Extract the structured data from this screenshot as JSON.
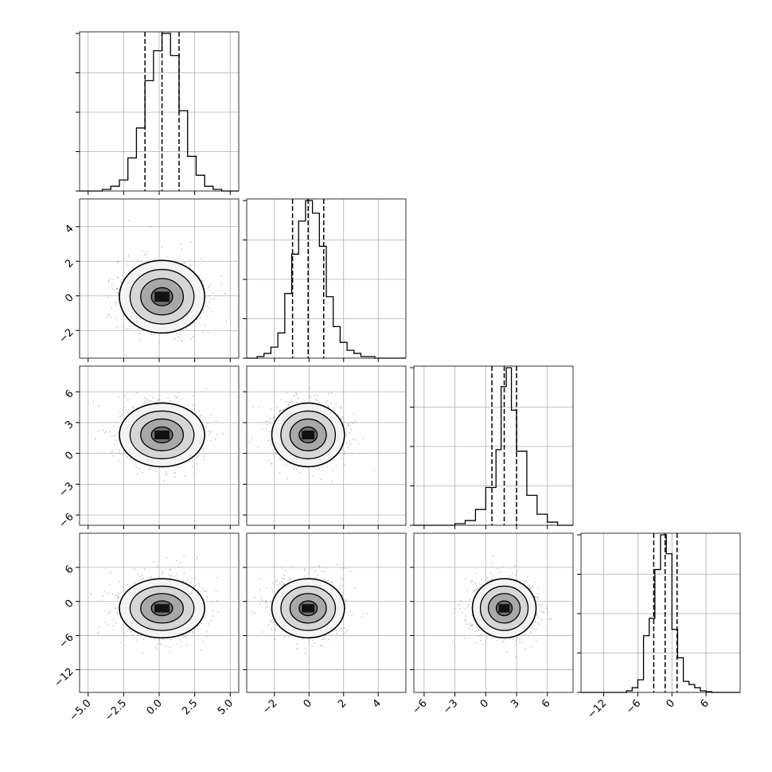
{
  "chart_data": {
    "type": "corner",
    "title": "",
    "grid": true,
    "variables": [
      {
        "median": 0.2,
        "q16": -1.0,
        "q84": 1.4,
        "range": [
          -5.6,
          5.6
        ],
        "ticks": [
          -5.0,
          -2.5,
          0.0,
          2.5,
          5.0
        ],
        "tick_labels": [
          "−5.0",
          "−2.5",
          "0.0",
          "2.5",
          "5.0"
        ],
        "bin_edges": [
          -4.0,
          -3.4,
          -2.8,
          -2.2,
          -1.6,
          -1.0,
          -0.4,
          0.2,
          0.8,
          1.4,
          2.0,
          2.6,
          3.2,
          3.8,
          4.4
        ],
        "counts": [
          0.01,
          0.03,
          0.07,
          0.21,
          0.4,
          0.7,
          0.89,
          1.0,
          0.86,
          0.51,
          0.22,
          0.1,
          0.03,
          0.01
        ]
      },
      {
        "median": -0.05,
        "q16": -0.95,
        "q84": 0.85,
        "range": [
          -3.6,
          5.6
        ],
        "ticks": [
          -2,
          0,
          2,
          4
        ],
        "tick_labels": [
          "−2",
          "0",
          "2",
          "4"
        ],
        "bin_edges": [
          -3.0,
          -2.6,
          -2.2,
          -1.8,
          -1.4,
          -1.0,
          -0.6,
          -0.2,
          0.2,
          0.6,
          1.0,
          1.4,
          1.8,
          2.2,
          2.6,
          3.0,
          3.4,
          3.8
        ],
        "counts": [
          0.01,
          0.03,
          0.07,
          0.16,
          0.41,
          0.66,
          0.87,
          1.0,
          0.92,
          0.71,
          0.39,
          0.2,
          0.1,
          0.05,
          0.03,
          0.01,
          0.01
        ]
      },
      {
        "median": 1.8,
        "q16": 0.6,
        "q84": 3.0,
        "range": [
          -7.0,
          8.5
        ],
        "ticks": [
          -6,
          -3,
          0,
          3,
          6
        ],
        "tick_labels": [
          "−6",
          "−3",
          "0",
          "3",
          "6"
        ],
        "bin_edges": [
          -3.0,
          -2.0,
          -1.0,
          0.0,
          1.0,
          1.5,
          2.0,
          2.5,
          3.0,
          4.0,
          5.0,
          6.0,
          7.0
        ],
        "counts": [
          0.01,
          0.03,
          0.1,
          0.24,
          0.48,
          0.88,
          1.0,
          0.73,
          0.47,
          0.19,
          0.07,
          0.02
        ]
      },
      {
        "median": -1.2,
        "q16": -3.2,
        "q84": 0.9,
        "range": [
          -16.0,
          12.0
        ],
        "ticks": [
          -12,
          -6,
          0,
          6
        ],
        "tick_labels": [
          "−12",
          "−6",
          "0",
          "6"
        ],
        "bin_edges": [
          -8.0,
          -7.0,
          -6.0,
          -5.0,
          -4.0,
          -3.0,
          -2.0,
          -1.0,
          0.0,
          1.0,
          2.0,
          3.0,
          4.0,
          5.0,
          6.0,
          7.0
        ],
        "counts": [
          0.01,
          0.03,
          0.08,
          0.36,
          0.47,
          0.78,
          1.0,
          0.88,
          0.4,
          0.22,
          0.07,
          0.05,
          0.03,
          0.01,
          0.005
        ]
      }
    ],
    "pairs": [
      {
        "x": 0,
        "y": 1,
        "center": [
          0.2,
          -0.05
        ],
        "sigma": [
          1.5,
          1.05
        ]
      },
      {
        "x": 0,
        "y": 2,
        "center": [
          0.2,
          1.8
        ],
        "sigma": [
          1.5,
          1.55
        ]
      },
      {
        "x": 1,
        "y": 2,
        "center": [
          -0.05,
          1.8
        ],
        "sigma": [
          1.05,
          1.55
        ]
      },
      {
        "x": 0,
        "y": 3,
        "center": [
          0.2,
          -1.2
        ],
        "sigma": [
          1.5,
          2.6
        ]
      },
      {
        "x": 1,
        "y": 3,
        "center": [
          -0.05,
          -1.2
        ],
        "sigma": [
          1.05,
          2.6
        ]
      },
      {
        "x": 2,
        "y": 3,
        "center": [
          1.8,
          -1.2
        ],
        "sigma": [
          1.55,
          2.6
        ]
      }
    ],
    "contour_levels_sigma": [
      0.5,
      1.0,
      1.5,
      2.0
    ]
  }
}
